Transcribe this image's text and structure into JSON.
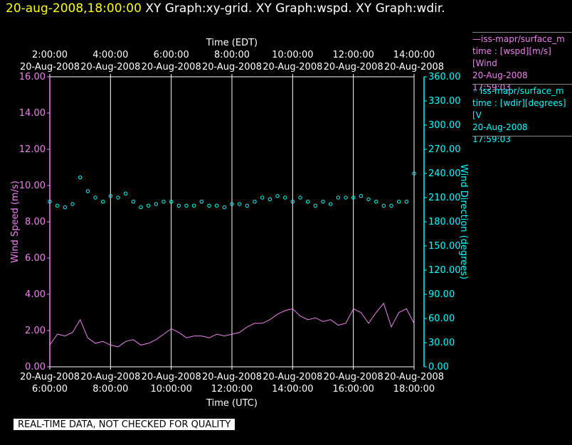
{
  "header": {
    "timestamp": "20-aug-2008,18:00:00",
    "graph_titles": [
      "XY Graph:xy-grid.",
      "XY Graph:wspd.",
      "XY Graph:wdir."
    ]
  },
  "legend": {
    "wspd": {
      "line1": "—iss-mapr/surface_m",
      "line2": "time : [wspd][m/s][Wind",
      "line3": "20-Aug-2008",
      "line4": "17:59:03"
    },
    "wdir": {
      "line1": "◦ iss-mapr/surface_m",
      "line2": "time : [wdir][degrees][V",
      "line3": "20-Aug-2008",
      "line4": "17:59:03"
    }
  },
  "disclaimer": "REAL-TIME DATA, NOT CHECKED FOR QUALITY",
  "colors": {
    "wspd": "#ee82ee",
    "wdir": "#00ffff",
    "header": "#ffff00",
    "grid": "#ffffff"
  },
  "chart_data": {
    "type": "line+scatter",
    "top_axis": {
      "label": "Time (EDT)",
      "ticks": [
        {
          "t": "2:00:00",
          "d": "20-Aug-2008"
        },
        {
          "t": "4:00:00",
          "d": "20-Aug-2008"
        },
        {
          "t": "6:00:00",
          "d": "20-Aug-2008"
        },
        {
          "t": "8:00:00",
          "d": "20-Aug-2008"
        },
        {
          "t": "10:00:00",
          "d": "20-Aug-2008"
        },
        {
          "t": "12:00:00",
          "d": "20-Aug-2008"
        },
        {
          "t": "14:00:00",
          "d": "20-Aug-2008"
        }
      ]
    },
    "bottom_axis": {
      "label": "Time (UTC)",
      "ticks": [
        {
          "t": "6:00:00",
          "d": "20-Aug-2008"
        },
        {
          "t": "8:00:00",
          "d": "20-Aug-2008"
        },
        {
          "t": "10:00:00",
          "d": "20-Aug-2008"
        },
        {
          "t": "12:00:00",
          "d": "20-Aug-2008"
        },
        {
          "t": "14:00:00",
          "d": "20-Aug-2008"
        },
        {
          "t": "16:00:00",
          "d": "20-Aug-2008"
        },
        {
          "t": "18:00:00",
          "d": "20-Aug-2008"
        }
      ],
      "range_utc_hours": [
        6,
        18
      ]
    },
    "left_axis": {
      "label": "Wind Speed (m/s)",
      "ylim": [
        0,
        16
      ],
      "ticks": [
        "0.00",
        "2.00",
        "4.00",
        "6.00",
        "8.00",
        "10.00",
        "12.00",
        "14.00",
        "16.00"
      ]
    },
    "right_axis": {
      "label": "Wind Direction (degrees)",
      "ylim": [
        0,
        360
      ],
      "ticks": [
        "0.00",
        "30.00",
        "60.00",
        "90.00",
        "120.00",
        "150.00",
        "180.00",
        "210.00",
        "240.00",
        "270.00",
        "300.00",
        "330.00",
        "360.00"
      ]
    },
    "grid": "vertical",
    "series": [
      {
        "id": "wspd",
        "style": "line",
        "axis": "left",
        "x": [
          6.0,
          6.25,
          6.5,
          6.75,
          7.0,
          7.25,
          7.5,
          7.75,
          8.0,
          8.25,
          8.5,
          8.75,
          9.0,
          9.25,
          9.5,
          9.75,
          10.0,
          10.25,
          10.5,
          10.75,
          11.0,
          11.25,
          11.5,
          11.75,
          12.0,
          12.25,
          12.5,
          12.75,
          13.0,
          13.25,
          13.5,
          13.75,
          14.0,
          14.25,
          14.5,
          14.75,
          15.0,
          15.25,
          15.5,
          15.75,
          16.0,
          16.25,
          16.5,
          16.75,
          17.0,
          17.25,
          17.5,
          17.75,
          18.0
        ],
        "y": [
          1.2,
          1.8,
          1.7,
          1.9,
          2.6,
          1.6,
          1.3,
          1.4,
          1.2,
          1.1,
          1.4,
          1.5,
          1.2,
          1.3,
          1.5,
          1.8,
          2.1,
          1.9,
          1.6,
          1.7,
          1.7,
          1.6,
          1.8,
          1.7,
          1.8,
          1.9,
          2.2,
          2.4,
          2.4,
          2.6,
          2.9,
          3.1,
          3.2,
          2.8,
          2.6,
          2.7,
          2.5,
          2.6,
          2.3,
          2.4,
          3.2,
          3.0,
          2.4,
          3.0,
          3.5,
          2.2,
          3.0,
          3.2,
          2.4
        ]
      },
      {
        "id": "wdir",
        "style": "scatter",
        "axis": "right",
        "x": [
          6.0,
          6.25,
          6.5,
          6.75,
          7.0,
          7.25,
          7.5,
          7.75,
          8.0,
          8.25,
          8.5,
          8.75,
          9.0,
          9.25,
          9.5,
          9.75,
          10.0,
          10.25,
          10.5,
          10.75,
          11.0,
          11.25,
          11.5,
          11.75,
          12.0,
          12.25,
          12.5,
          12.75,
          13.0,
          13.25,
          13.5,
          13.75,
          14.0,
          14.25,
          14.5,
          14.75,
          15.0,
          15.25,
          15.5,
          15.75,
          16.0,
          16.25,
          16.5,
          16.75,
          17.0,
          17.25,
          17.5,
          17.75,
          18.0
        ],
        "y": [
          205,
          200,
          198,
          202,
          235,
          218,
          210,
          205,
          212,
          210,
          215,
          205,
          198,
          200,
          202,
          205,
          205,
          200,
          200,
          200,
          205,
          200,
          200,
          198,
          202,
          202,
          200,
          205,
          210,
          208,
          212,
          210,
          205,
          210,
          205,
          200,
          205,
          202,
          210,
          210,
          210,
          212,
          208,
          205,
          200,
          200,
          205,
          205,
          240
        ]
      }
    ]
  }
}
